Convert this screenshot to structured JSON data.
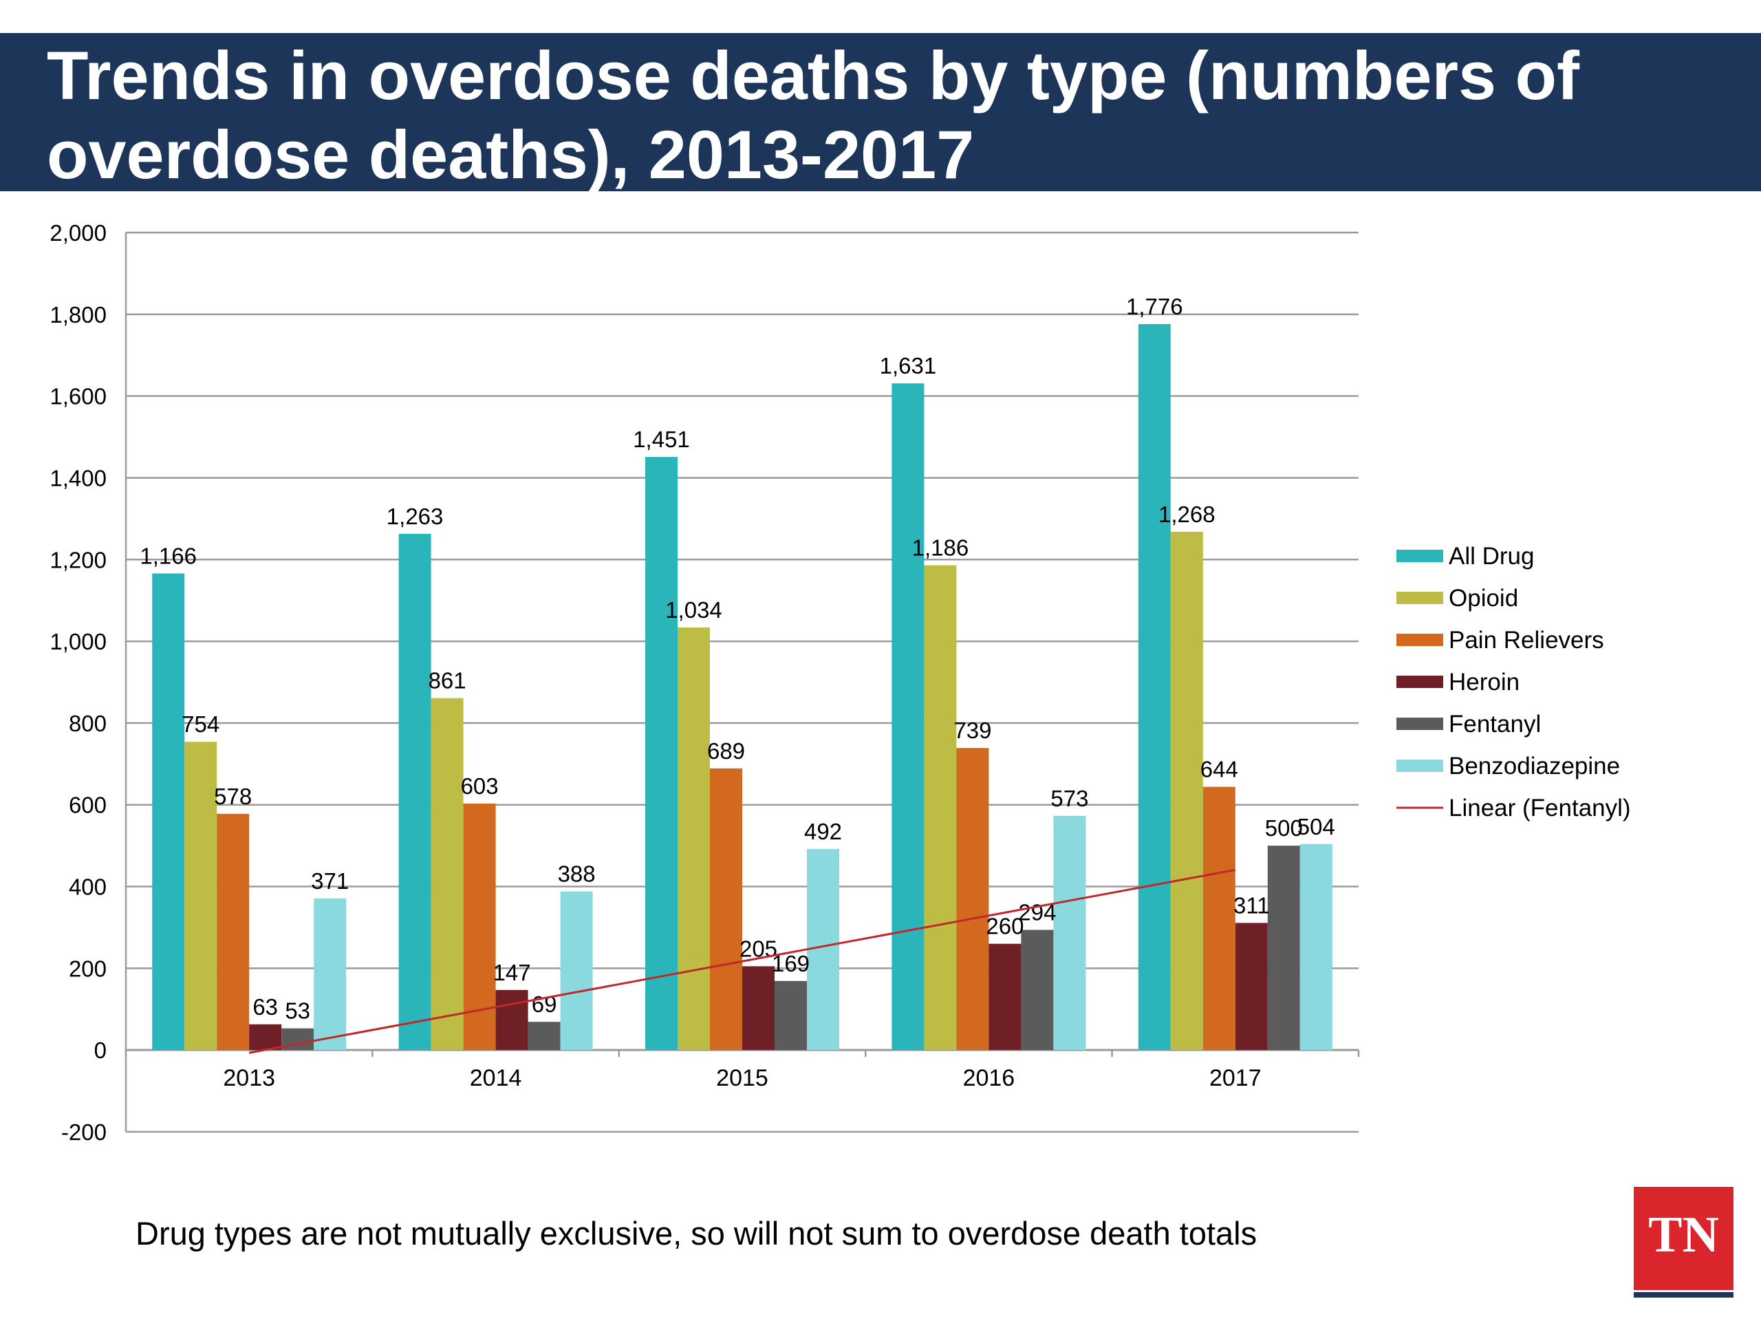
{
  "title": "Trends in overdose deaths by type (numbers of overdose deaths), 2013-2017",
  "footnote": "Drug types are not mutually exclusive, so will not sum to overdose death totals",
  "logo": {
    "text": "TN",
    "color": "#d9252b",
    "underline_color": "#1d3559"
  },
  "colors": {
    "title_bar": "#1d3559"
  },
  "chart_data": {
    "type": "bar",
    "categories": [
      "2013",
      "2014",
      "2015",
      "2016",
      "2017"
    ],
    "series": [
      {
        "name": "All Drug",
        "color": "#2ab5ba",
        "values": [
          1166,
          1263,
          1451,
          1631,
          1776
        ],
        "labels": [
          "1,166",
          "1,263",
          "1,451",
          "1,631",
          "1,776"
        ]
      },
      {
        "name": "Opioid",
        "color": "#bdbd45",
        "values": [
          754,
          861,
          1034,
          1186,
          1268
        ],
        "labels": [
          "754",
          "861",
          "1,034",
          "1,186",
          "1,268"
        ]
      },
      {
        "name": "Pain Relievers",
        "color": "#d2691e",
        "values": [
          578,
          603,
          689,
          739,
          644
        ],
        "labels": [
          "578",
          "603",
          "689",
          "739",
          "644"
        ]
      },
      {
        "name": "Heroin",
        "color": "#6e2026",
        "values": [
          63,
          147,
          205,
          260,
          311
        ],
        "labels": [
          "63",
          "147",
          "205",
          "260",
          "311"
        ]
      },
      {
        "name": "Fentanyl",
        "color": "#5b5b5b",
        "values": [
          53,
          69,
          169,
          294,
          500
        ],
        "labels": [
          "53",
          "69",
          "169",
          "294",
          "500"
        ]
      },
      {
        "name": "Benzodiazepine",
        "color": "#8ad9de",
        "values": [
          371,
          388,
          492,
          573,
          504
        ],
        "labels": [
          "371",
          "388",
          "492",
          "573",
          "504"
        ]
      }
    ],
    "trendline": {
      "name": "Linear (Fentanyl)",
      "color": "#c0282b",
      "series": "Fentanyl",
      "fit": "linear"
    },
    "yticks": [
      "2,000",
      "1,800",
      "1,600",
      "1,400",
      "1,200",
      "1,000",
      "800",
      "600",
      "400",
      "200",
      "0",
      "-200"
    ],
    "ylim": [
      -200,
      2000
    ],
    "ytick_step": 200,
    "grid": true,
    "legend_position": "right",
    "xlabel": "",
    "ylabel": ""
  }
}
